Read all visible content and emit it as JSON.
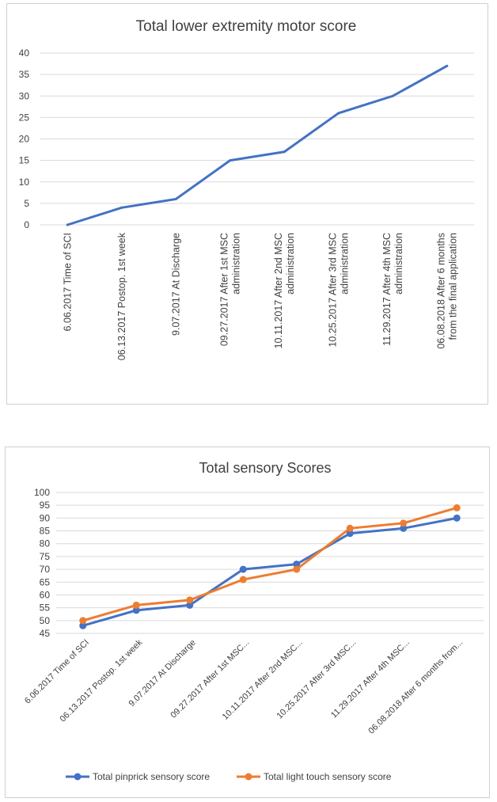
{
  "chart_data": [
    {
      "type": "line",
      "title": "Total lower extremity motor score",
      "xlabel": "",
      "ylabel": "",
      "ylim": [
        0,
        40
      ],
      "yticks": [
        0,
        5,
        10,
        15,
        20,
        25,
        30,
        35,
        40
      ],
      "categories": [
        [
          "6.06.2017 Time of SCI"
        ],
        [
          "06.13.2017 Postop. 1st week"
        ],
        [
          "9.07.2017 At Discharge"
        ],
        [
          "09.27.2017 After 1st MSC",
          "administration"
        ],
        [
          "10.11.2017 After 2nd MSC",
          "administration"
        ],
        [
          "10.25.2017 After 3rd MSC",
          "administration"
        ],
        [
          "11.29.2017 After 4th MSC",
          "administration"
        ],
        [
          "06.08.2018 After 6 months",
          "from the final application"
        ]
      ],
      "series": [
        {
          "name": "Total lower extremity motor score",
          "color": "#4472C4",
          "values": [
            0,
            4,
            6,
            15,
            17,
            26,
            30,
            37
          ]
        }
      ],
      "grid": true,
      "legend": "none"
    },
    {
      "type": "line",
      "title": "Total sensory Scores",
      "xlabel": "",
      "ylabel": "",
      "ylim": [
        45,
        100
      ],
      "yticks": [
        45,
        50,
        55,
        60,
        65,
        70,
        75,
        80,
        85,
        90,
        95,
        100
      ],
      "categories": [
        "6.06.2017 Time of SCI",
        "06.13.2017 Postop. 1st week",
        "9.07.2017 At Discharge",
        "09.27.2017 After 1st MSC...",
        "10.11.2017 After 2nd MSC...",
        "10.25.2017 After 3rd MSC...",
        "11.29.2017 After 4th MSC...",
        "06.08.2018 After 6 months from..."
      ],
      "series": [
        {
          "name": "Total pinprick sensory score",
          "color": "#4472C4",
          "values": [
            48,
            54,
            56,
            70,
            72,
            84,
            86,
            90
          ]
        },
        {
          "name": "Total light touch sensory score",
          "color": "#ED7D31",
          "values": [
            50,
            56,
            58,
            66,
            70,
            86,
            88,
            94
          ]
        }
      ],
      "grid": true,
      "legend": "bottom"
    }
  ]
}
